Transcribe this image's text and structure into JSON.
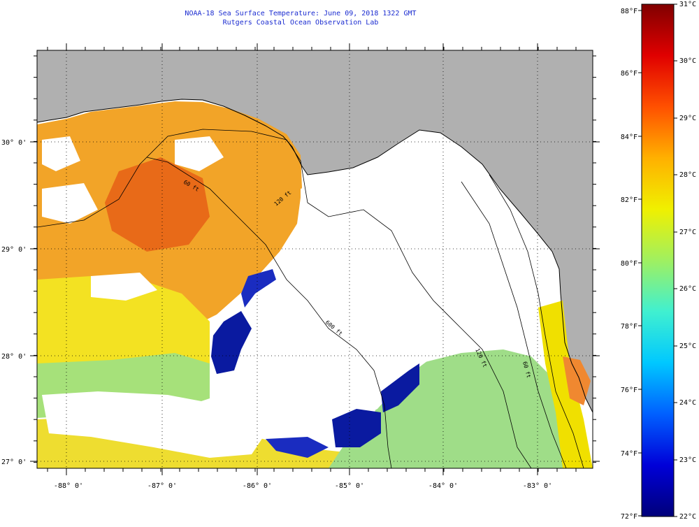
{
  "header": {
    "title": "NOAA-18 Sea Surface Temperature:  June 09, 2018 1322 GMT",
    "subtitle": "Rutgers Coastal Ocean Observation Lab"
  },
  "map": {
    "lon_labels": [
      "-88° 0'",
      "-87° 0'",
      "-86° 0'",
      "-85° 0'",
      "-84° 0'",
      "-83° 0'"
    ],
    "lat_labels": [
      "30° 0'",
      "29° 0'",
      "28° 0'",
      "27° 0'"
    ],
    "isobaths": [
      {
        "label": "60 ft"
      },
      {
        "label": "120 ft"
      },
      {
        "label": "600 ft"
      },
      {
        "label": "120 ft"
      },
      {
        "label": "60 ft"
      }
    ],
    "colors": {
      "land": "#b0b0b0",
      "cloud": "#ffffff",
      "warm": "#f0a020",
      "yellow": "#f5e21a",
      "green": "#a8e47a",
      "cold": "#0a1aa0"
    }
  },
  "colorbar": {
    "f_labels": [
      "88°F",
      "86°F",
      "84°F",
      "82°F",
      "80°F",
      "78°F",
      "76°F",
      "74°F",
      "72°F"
    ],
    "c_labels": [
      "31°C",
      "30°C",
      "29°C",
      "28°C",
      "27°C",
      "26°C",
      "25°C",
      "24°C",
      "23°C",
      "22°C"
    ],
    "stops": [
      "#00007a",
      "#0000d8",
      "#0060ff",
      "#00c8ff",
      "#40f0d0",
      "#a0f060",
      "#f0f000",
      "#ffb000",
      "#ff5000",
      "#e00000",
      "#800000"
    ]
  }
}
